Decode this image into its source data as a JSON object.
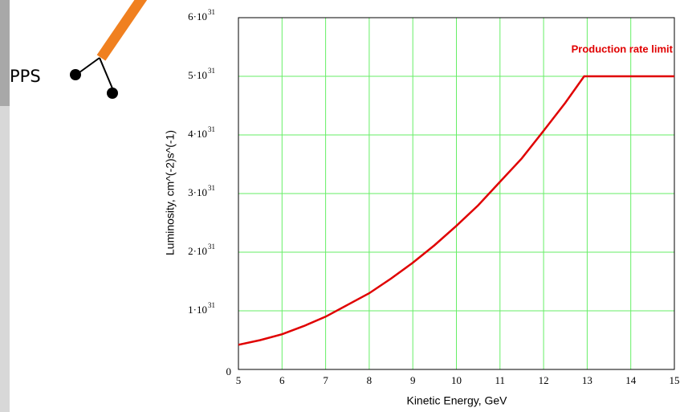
{
  "side_label": "PPS",
  "chart_data": {
    "type": "line",
    "x_label": "Kinetic Energy, GeV",
    "y_label": "Luminosity, cm^(-2)s^(-1)",
    "annotation": "Production rate limit",
    "x": [
      5,
      5.5,
      6,
      6.5,
      7,
      7.5,
      8,
      8.5,
      9,
      9.5,
      10,
      10.5,
      11,
      11.5,
      12,
      12.5,
      12.93,
      15
    ],
    "series": [
      {
        "color": "#e00000",
        "values": [
          4.2e+30,
          5e+30,
          6e+30,
          7.4e+30,
          9e+30,
          1.1e+31,
          1.3e+31,
          1.55e+31,
          1.82e+31,
          2.12e+31,
          2.45e+31,
          2.8e+31,
          3.2e+31,
          3.6e+31,
          4.07e+31,
          4.55e+31,
          5e+31,
          5e+31
        ]
      }
    ],
    "xlim": [
      5,
      15
    ],
    "xticks": [
      5,
      6,
      7,
      8,
      9,
      10,
      11,
      12,
      13,
      14,
      15
    ],
    "ylim": [
      0,
      6e+31
    ],
    "yticks": [
      0,
      {
        "value": 1e+31,
        "label": "1·10"
      },
      {
        "value": 2e+31,
        "label": "2·10"
      },
      {
        "value": 3e+31,
        "label": "3·10"
      },
      {
        "value": 4e+31,
        "label": "4·10"
      },
      {
        "value": 5e+31,
        "label": "5·10"
      },
      {
        "value": 6e+31,
        "label": "6·10"
      }
    ],
    "ytick_exponent": "31",
    "grid": true,
    "grid_color": "#66ee66"
  }
}
